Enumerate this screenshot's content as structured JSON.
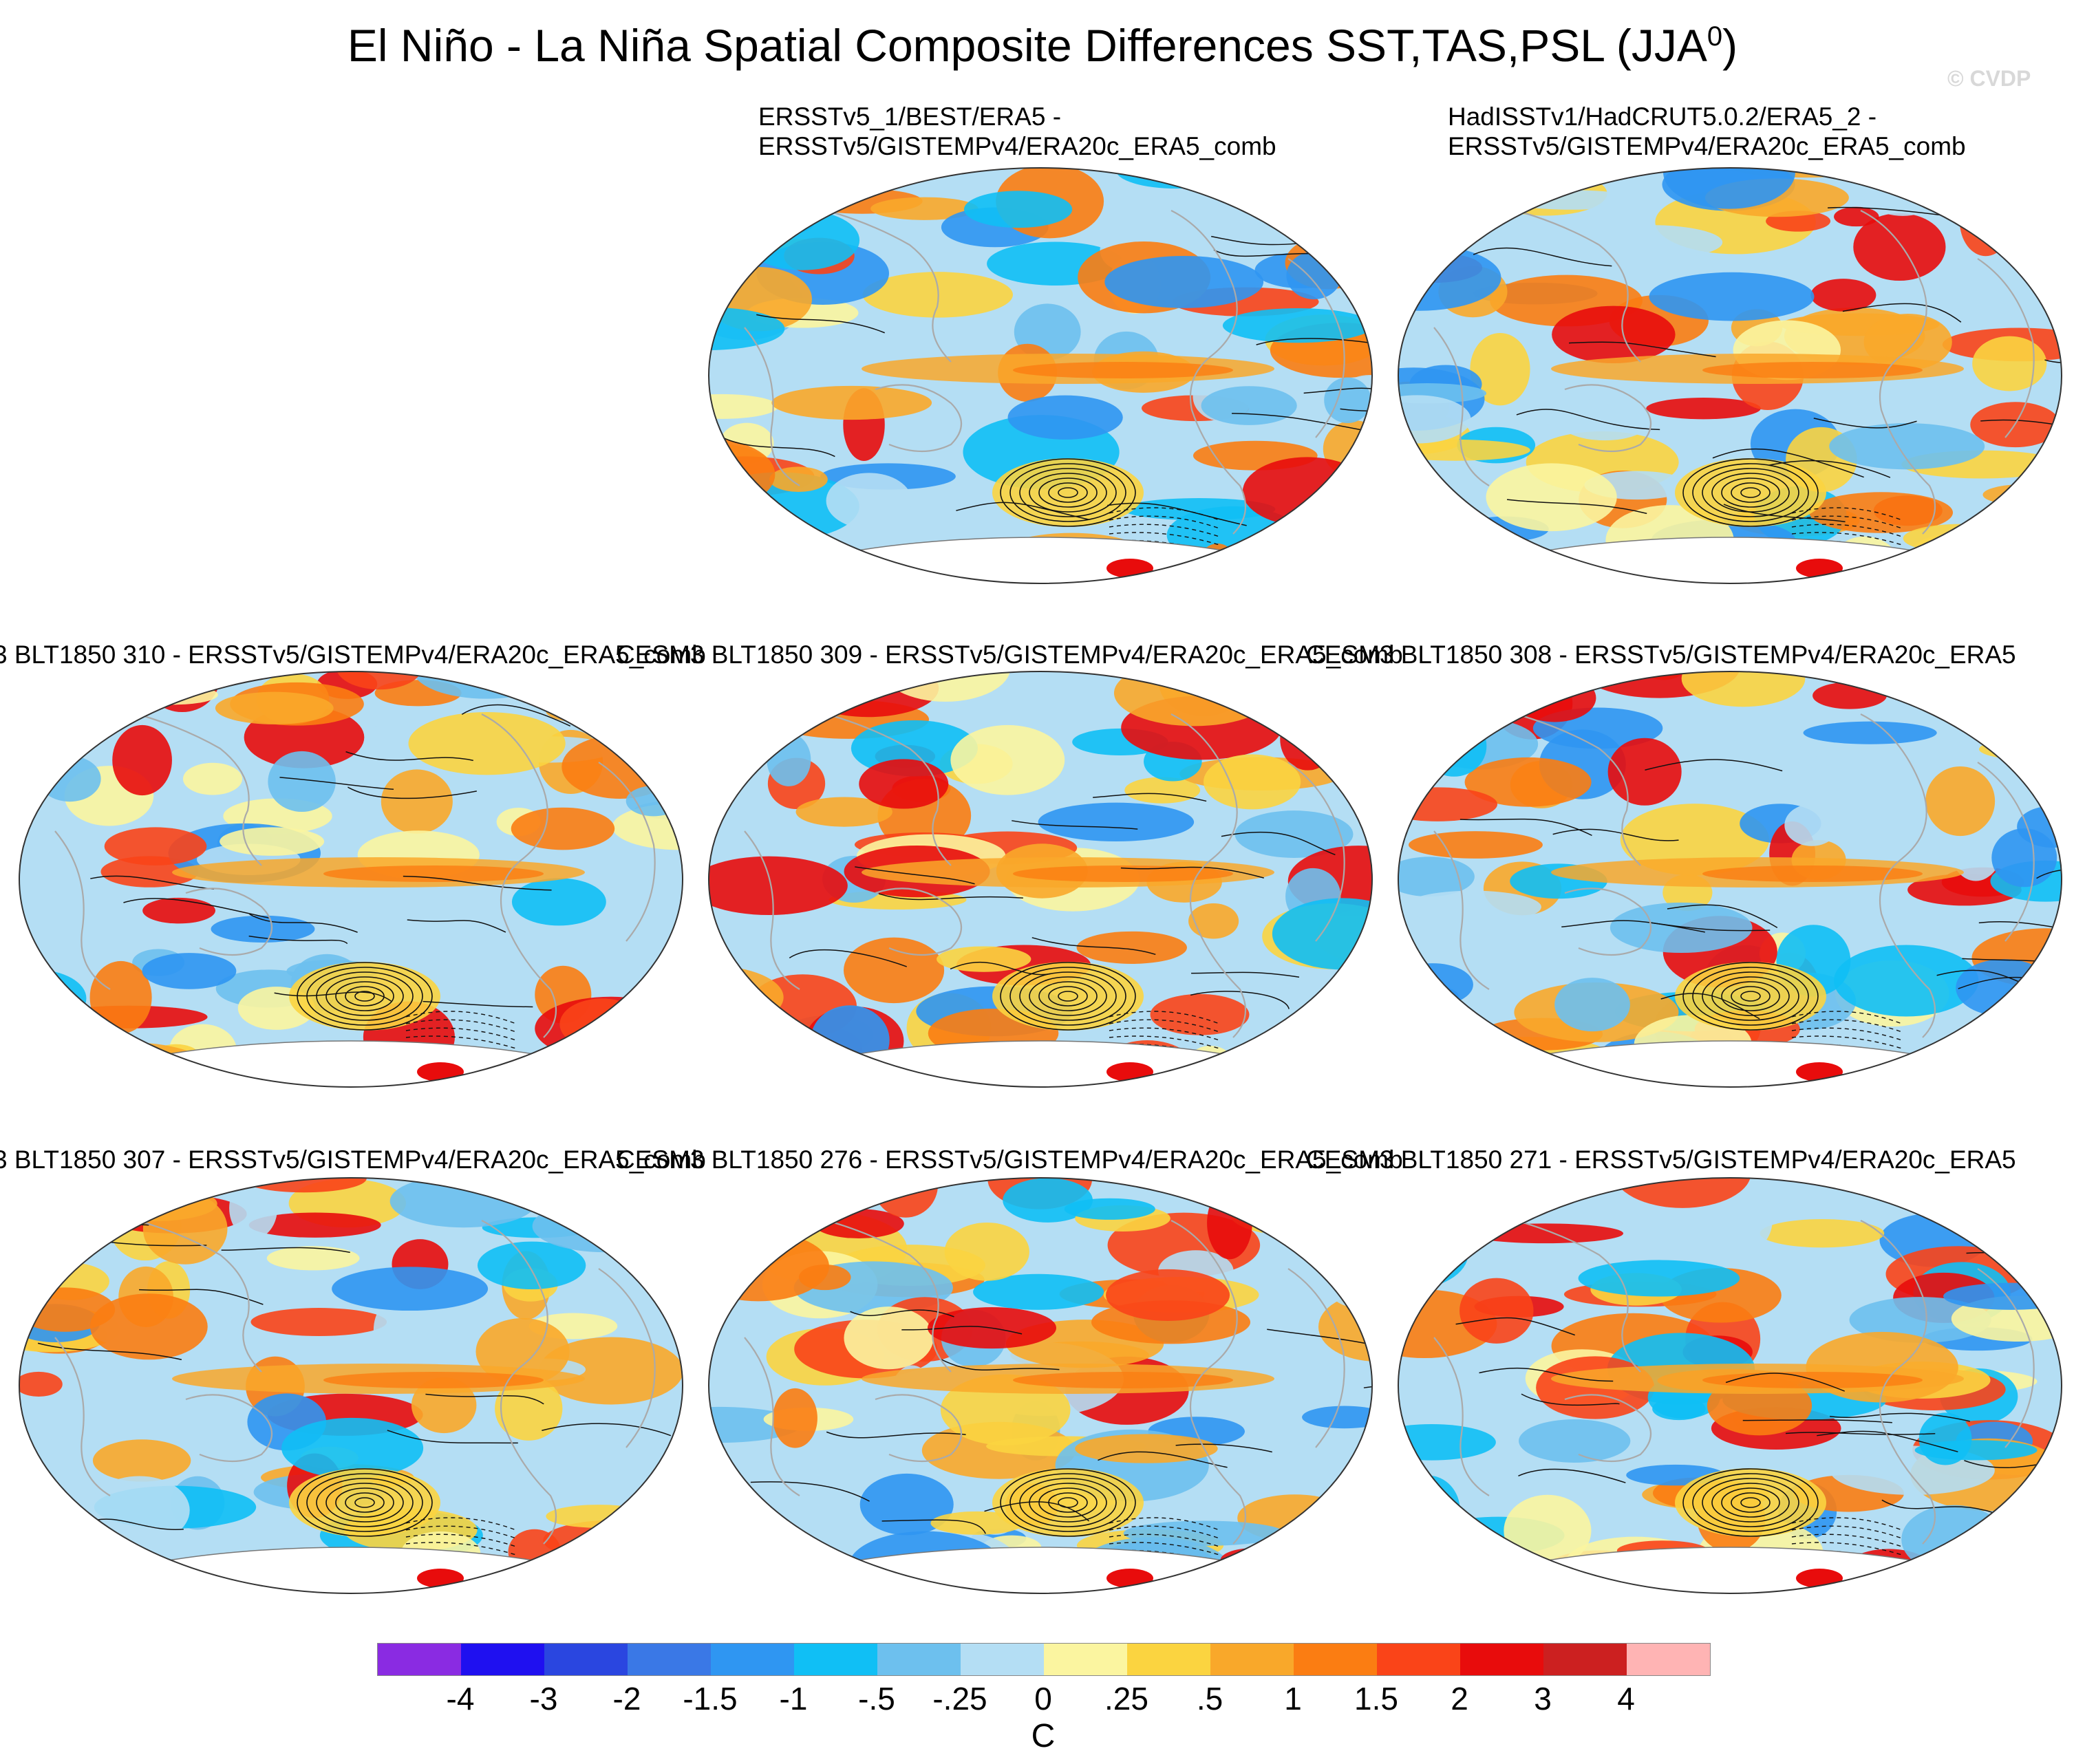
{
  "title": {
    "main": "El Niño - La Niña Spatial Composite Differences SST,TAS,PSL (JJA",
    "superscript": "0",
    "suffix": ")"
  },
  "copyright": "© CVDP",
  "panels": [
    {
      "id": "p1",
      "line1": "ERSSTv5_1/BEST/ERA5 -",
      "line2": "ERSSTv5/GISTEMPv4/ERA20c_ERA5_comb"
    },
    {
      "id": "p2",
      "line1": "HadISSTv1/HadCRUT5.0.2/ERA5_2 -",
      "line2": "ERSSTv5/GISTEMPv4/ERA20c_ERA5_comb"
    },
    {
      "id": "p3",
      "line1": "3 BLT1850 310 - ERSSTv5/GISTEMPv4/ERA20c_ERA5_comb"
    },
    {
      "id": "p4",
      "line1": "CESM3 BLT1850 309 - ERSSTv5/GISTEMPv4/ERA20c_ERA5_comb"
    },
    {
      "id": "p5",
      "line1": "CESM3 BLT1850 308 - ERSSTv5/GISTEMPv4/ERA20c_ERA5"
    },
    {
      "id": "p6",
      "line1": "3 BLT1850 307 - ERSSTv5/GISTEMPv4/ERA20c_ERA5_comb"
    },
    {
      "id": "p7",
      "line1": "CESM3 BLT1850 276 - ERSSTv5/GISTEMPv4/ERA20c_ERA5_comb"
    },
    {
      "id": "p8",
      "line1": "CESM3 BLT1850 271 - ERSSTv5/GISTEMPv4/ERA20c_ERA5"
    }
  ],
  "colorbar": {
    "colors": [
      "#8a2be2",
      "#1f10f0",
      "#2a46e0",
      "#3a78e6",
      "#2f96f2",
      "#10bff5",
      "#6dc0ee",
      "#b4def4",
      "#fbf5a0",
      "#fbd440",
      "#f9a82a",
      "#fb7d12",
      "#fa4418",
      "#e80c0c",
      "#cc2020",
      "#ffb4b4"
    ],
    "ticks": [
      "-4",
      "-3",
      "-2",
      "-1.5",
      "-1",
      "-.5",
      "-.25",
      "0",
      ".25",
      ".5",
      "1",
      "1.5",
      "2",
      "3",
      "4"
    ],
    "unit": "C"
  }
}
